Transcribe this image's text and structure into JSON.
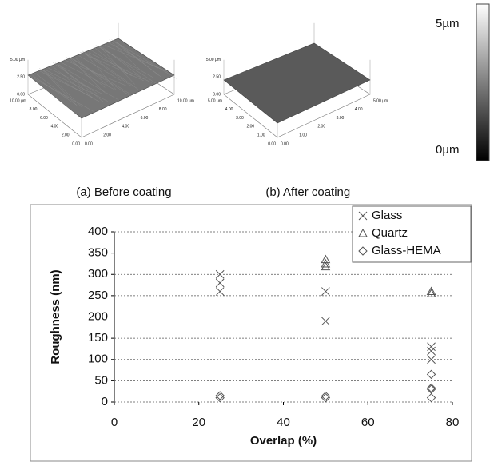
{
  "afm_panels": [
    {
      "caption": "(a) Before coating",
      "z_labels": [
        "5.00 µm",
        "2.50",
        "0.00"
      ],
      "y_labels": [
        "10.00 µm",
        "8.00",
        "6.00",
        "4.00",
        "2.00",
        "0.00"
      ],
      "x_labels": [
        "10.00 µm",
        "8.00",
        "6.00",
        "4.00",
        "2.00",
        "0.00"
      ]
    },
    {
      "caption": "(b) After coating",
      "z_labels": [
        "5.00 µm",
        "2.50",
        "0.00"
      ],
      "y_labels": [
        "5.00 µm",
        "4.00",
        "3.00",
        "2.00",
        "1.00",
        "0.00"
      ],
      "x_labels": [
        "5.00 µm",
        "4.00",
        "3.00",
        "2.00",
        "1.00",
        "0.00"
      ]
    }
  ],
  "colorbar": {
    "max_label": "5µm",
    "min_label": "0µm"
  },
  "chart_data": {
    "type": "scatter",
    "x_label": "Overlap (%)",
    "y_label": "Roughness (nm)",
    "xlim": [
      0,
      80
    ],
    "xticks": [
      0,
      20,
      40,
      60,
      80
    ],
    "ylim": [
      0,
      400
    ],
    "yticks": [
      0,
      50,
      100,
      150,
      200,
      250,
      300,
      350,
      400
    ],
    "grid": true,
    "legend": "upper right",
    "series": [
      {
        "name": "Glass",
        "marker": "x",
        "color": "#555555",
        "x": [
          25,
          25,
          25,
          50,
          50,
          75,
          75,
          75
        ],
        "values": [
          300,
          280,
          260,
          260,
          190,
          130,
          120,
          100
        ]
      },
      {
        "name": "Quartz",
        "marker": "triangle",
        "color": "#555555",
        "x": [
          50,
          50,
          50,
          75,
          75
        ],
        "values": [
          335,
          325,
          318,
          260,
          255
        ]
      },
      {
        "name": "Glass-HEMA",
        "marker": "diamond",
        "color": "#555555",
        "x": [
          25,
          25,
          50,
          50,
          75,
          75,
          75,
          75
        ],
        "values": [
          15,
          10,
          14,
          10,
          65,
          33,
          30,
          10
        ]
      }
    ]
  }
}
